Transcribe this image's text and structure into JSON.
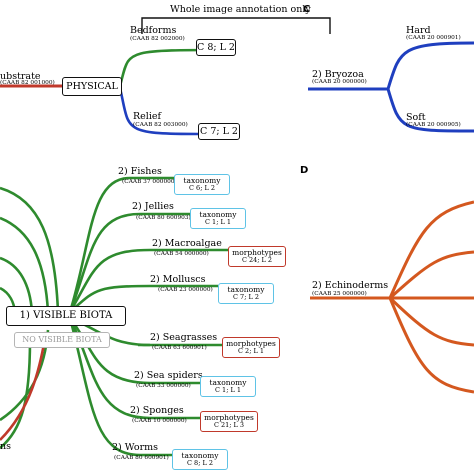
{
  "section_top_left": {
    "header": "Whole image annotation only",
    "root_label": "ubstrate",
    "root_code": "(CAAB 82 001000)",
    "hub_label": "PHYSICAL",
    "branches": [
      {
        "label": "Bedforms",
        "code": "(CAAB 82 002000)",
        "box": "C 8; L 2"
      },
      {
        "label": "Relief",
        "code": "(CAAB 82 003000)",
        "box": "C 7; L 2"
      }
    ]
  },
  "section_c": {
    "letter": "C",
    "root_label": "2) Bryozoa",
    "root_code": "(CAAB 20 000000)",
    "branches": [
      {
        "label": "Hard",
        "code": "(CAAB 20 000901)"
      },
      {
        "label": "Soft",
        "code": "(CAAB 20 000905)"
      }
    ]
  },
  "section_d": {
    "letter": "D",
    "root_label": "2) Echinoderms",
    "root_code": "(CAAB 25 000000)"
  },
  "section_biota": {
    "hub_label": "1) VISIBLE BIOTA",
    "alt_label": "NO VISIBLE BIOTA",
    "partial_label": "ns",
    "groups": [
      {
        "label": "2) Fishes",
        "code": "(CAAB 37 000000)",
        "box_title": "taxonomy",
        "box_count": "C 6; L 2"
      },
      {
        "label": "2) Jellies",
        "code": "(CAAB 80 600903)",
        "box_title": "taxonomy",
        "box_count": "C 1; L 1"
      },
      {
        "label": "2) Macroalgae",
        "code": "(CAAB 54 000000)",
        "box_title": "morphotypes",
        "box_count": "C 24; L 2"
      },
      {
        "label": "2) Molluscs",
        "code": "(CAAB 23 000000)",
        "box_title": "taxonomy",
        "box_count": "C 7; L 2"
      },
      {
        "label": "2) Seagrasses",
        "code": "(CAAB 63 600901)",
        "box_title": "morphotypes",
        "box_count": "C 2; L 1"
      },
      {
        "label": "2) Sea spiders",
        "code": "(CAAB 33 000000)",
        "box_title": "taxonomy",
        "box_count": "C 1; L 1"
      },
      {
        "label": "2) Sponges",
        "code": "(CAAB 10 000000)",
        "box_title": "morphotypes",
        "box_count": "C 21; L 3"
      },
      {
        "label": "2) Worms",
        "code": "(CAAB 80 600901)",
        "box_title": "taxonomy",
        "box_count": "C 8; L 2"
      }
    ]
  },
  "colors": {
    "green": "#2e8b2e",
    "blue": "#1f3fbf",
    "red": "#c0392b",
    "orange": "#d4581f",
    "black": "#111111",
    "cyan": "#5fc3e6"
  }
}
